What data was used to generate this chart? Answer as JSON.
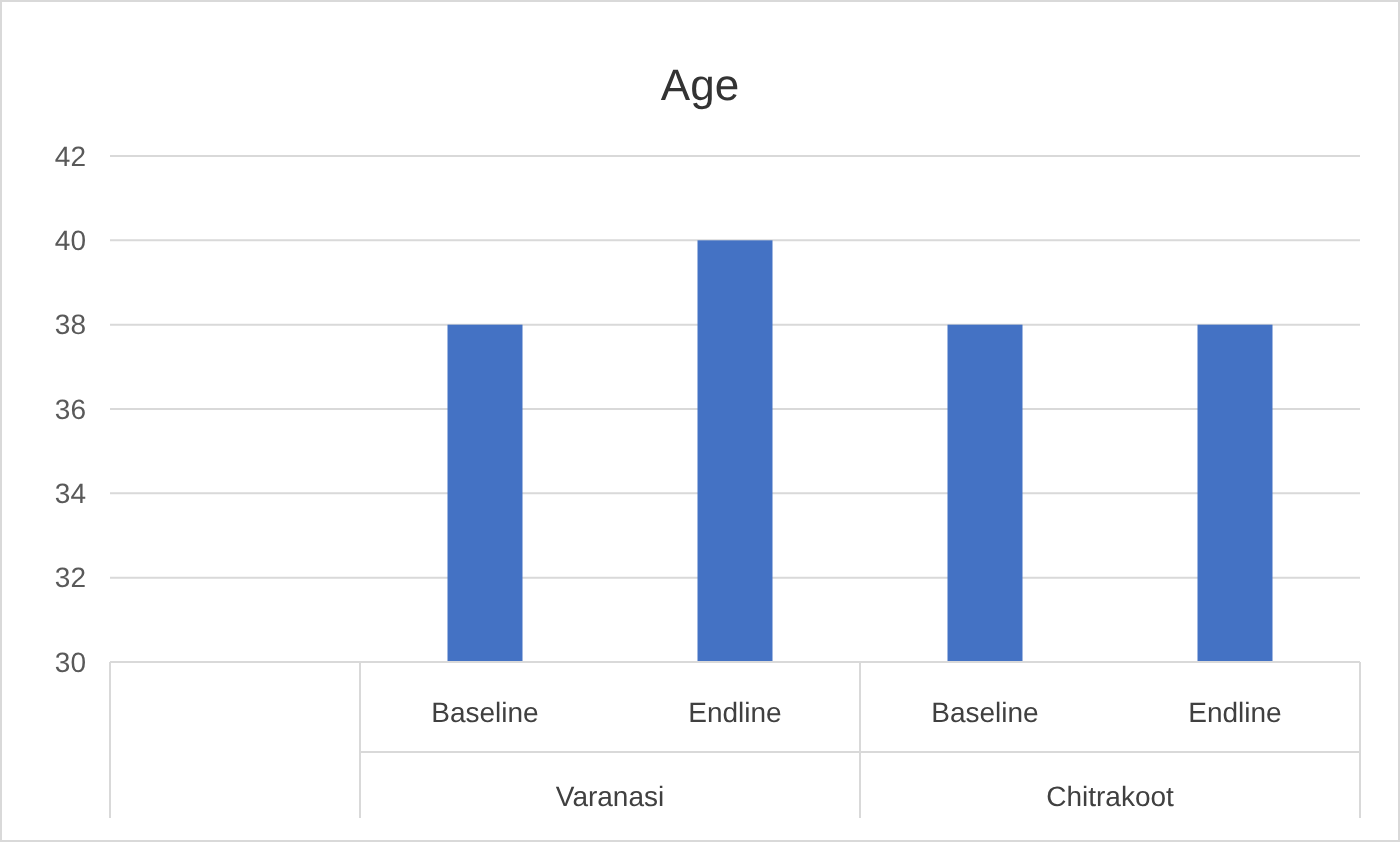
{
  "chart_data": {
    "type": "bar",
    "title": "Age",
    "categories": [
      null,
      "Baseline",
      "Endline",
      "Baseline",
      "Endline"
    ],
    "values": [
      null,
      38,
      40,
      38,
      38
    ],
    "color": "#4472c4",
    "ylim": [
      30,
      42
    ],
    "yticks": [
      30,
      32,
      34,
      36,
      38,
      40,
      42
    ],
    "grid": "y",
    "annotations": [
      "Varanasi",
      "Chitrakoot"
    ]
  }
}
